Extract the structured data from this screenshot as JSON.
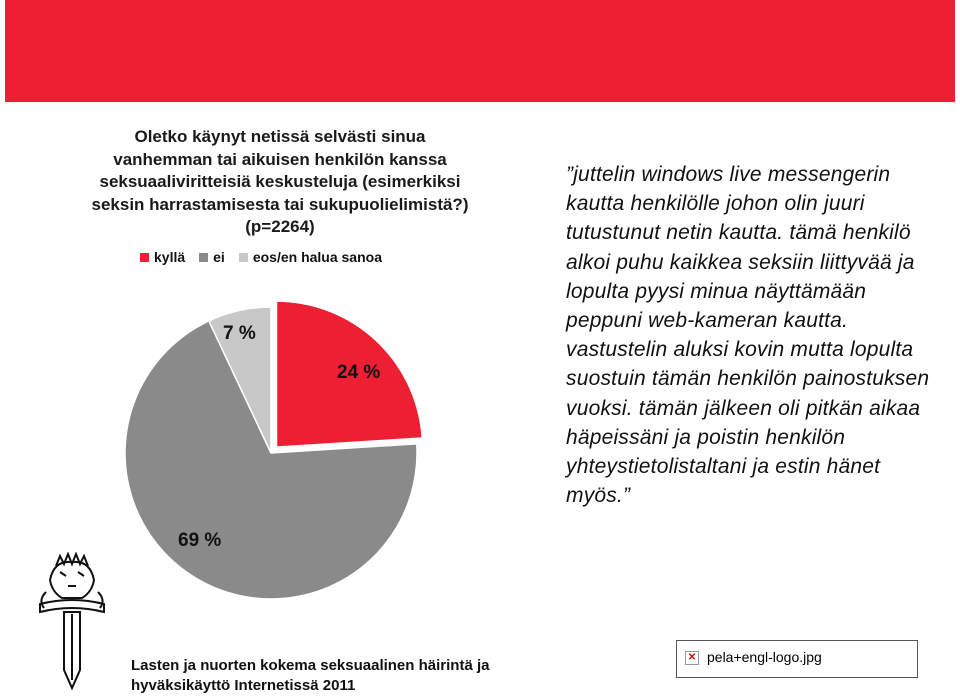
{
  "colors": {
    "banner": "#ee1f33",
    "kylla": "#ee1f33",
    "ei": "#8a8a8a",
    "eos": "#c8c8c8"
  },
  "chart_data": {
    "type": "pie",
    "title": "Oletko käynyt netissä selvästi sinua vanhemman tai aikuisen henkilön kanssa seksuaaliviritteisiä keskusteluja (esimerkiksi seksin harrastamisesta tai sukupuolielimistä?) (p=2264)",
    "categories": [
      "kyllä",
      "ei",
      "eos/en halua sanoa"
    ],
    "values": [
      24,
      69,
      7
    ],
    "unit": "%",
    "data_labels": [
      "24 %",
      "69 %",
      "7 %"
    ],
    "legend_position": "top"
  },
  "quote": "”juttelin windows live messengerin kautta henkilölle johon olin juuri tutustunut netin kautta. tämä henkilö alkoi puhu kaikkea seksiin liittyvää ja lopulta pyysi minua näyttämään peppuni web-kameran kautta. vastustelin aluksi kovin mutta lopulta suostuin tämän henkilön painostuksen vuoksi. tämän jälkeen oli pitkän aikaa häpeissäni ja poistin henkilön yhteystietolistaltani ja estin hänet myös.”",
  "footer": {
    "line1": "Lasten ja nuorten kokema seksuaalinen häirintä ja",
    "line2": "hyväksikäyttö Internetissä 2011"
  },
  "broken_image": {
    "alt": "pela+engl-logo.jpg",
    "icon": "broken-image-icon"
  },
  "emblem": {
    "icon": "police-lion-sword-emblem"
  }
}
